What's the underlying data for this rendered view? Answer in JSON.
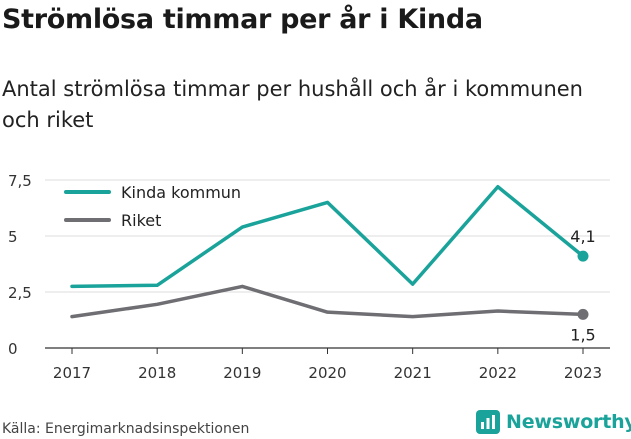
{
  "title": "Strömlösa timmar per år i Kinda",
  "subtitle": "Antal strömlösa timmar per hushåll och år i kommunen och riket",
  "source": "Källa: Energimarknadsinspektionen",
  "brand": "Newsworthy",
  "colors": {
    "kinda": "#1aa39a",
    "riket": "#6e6e73",
    "grid": "#dddddd",
    "axis": "#333333"
  },
  "chart_data": {
    "type": "line",
    "x": [
      "2017",
      "2018",
      "2019",
      "2020",
      "2021",
      "2022",
      "2023"
    ],
    "ylim": [
      0,
      7.5
    ],
    "yticks": [
      0,
      2.5,
      5,
      7.5
    ],
    "ytick_labels": [
      "0",
      "2,5",
      "5",
      "7,5"
    ],
    "grid": true,
    "legend_position": "top-left",
    "series": [
      {
        "name": "Kinda kommun",
        "values": [
          2.75,
          2.8,
          5.4,
          6.5,
          2.85,
          7.2,
          4.1
        ],
        "end_label": "4,1",
        "color": "#1aa39a"
      },
      {
        "name": "Riket",
        "values": [
          1.4,
          1.95,
          2.75,
          1.6,
          1.4,
          1.65,
          1.5
        ],
        "end_label": "1,5",
        "color": "#6e6e73"
      }
    ]
  }
}
